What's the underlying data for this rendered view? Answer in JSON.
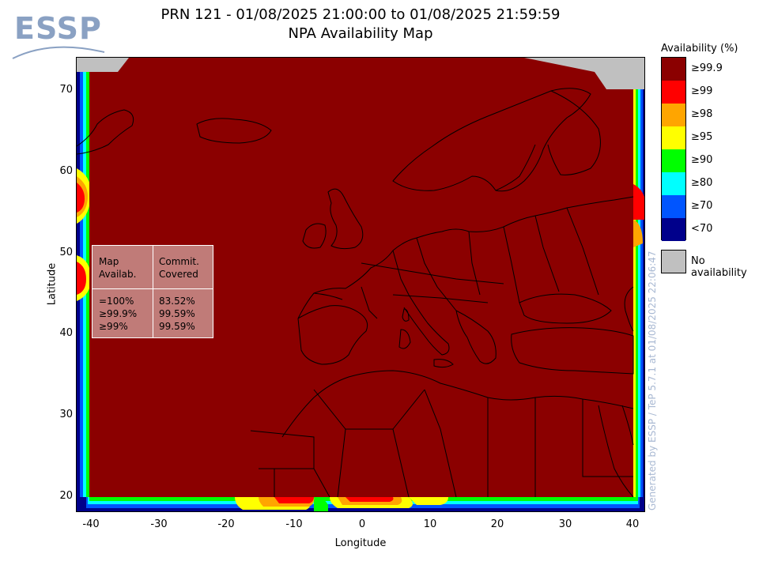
{
  "header": {
    "logo_text": "ESSP",
    "title_line1": "PRN 121 - 01/08/2025 21:00:00 to 01/08/2025 21:59:59",
    "title_line2": "NPA Availability Map"
  },
  "axes": {
    "xlabel": "Longitude",
    "ylabel": "Latitude",
    "xticks": [
      "-40",
      "-30",
      "-20",
      "-10",
      "0",
      "10",
      "20",
      "30",
      "40"
    ],
    "yticks": [
      "70",
      "60",
      "50",
      "40",
      "30",
      "20"
    ]
  },
  "map": {
    "lon_range": [
      -42,
      42
    ],
    "lat_range": [
      18,
      74
    ],
    "background_color": "#8b0000"
  },
  "stats_box": {
    "col1_header_line1": "Map",
    "col1_header_line2": "Availab.",
    "col2_header_line1": "Commit.",
    "col2_header_line2": "Covered",
    "rows": [
      {
        "level": "=100%",
        "covered": "83.52%"
      },
      {
        "level": "≥99.9%",
        "covered": "99.59%"
      },
      {
        "level": "≥99%",
        "covered": "99.59%"
      }
    ]
  },
  "legend": {
    "title": "Availability (%)",
    "items": [
      {
        "label": "≥99.9",
        "color": "#8b0000"
      },
      {
        "label": "≥99",
        "color": "#ff0000"
      },
      {
        "label": "≥98",
        "color": "#ffa500"
      },
      {
        "label": "≥95",
        "color": "#ffff00"
      },
      {
        "label": "≥90",
        "color": "#00ff00"
      },
      {
        "label": "≥80",
        "color": "#00ffff"
      },
      {
        "label": "≥70",
        "color": "#0055ff"
      },
      {
        "label": "<70",
        "color": "#00008b"
      }
    ],
    "no_availability_label": "No availability",
    "no_availability_color": "#c0c0c0"
  },
  "footer": {
    "generated_text": "Generated by ESSP / TeP 5.7.1 at 01/08/2025 22:06:47"
  }
}
